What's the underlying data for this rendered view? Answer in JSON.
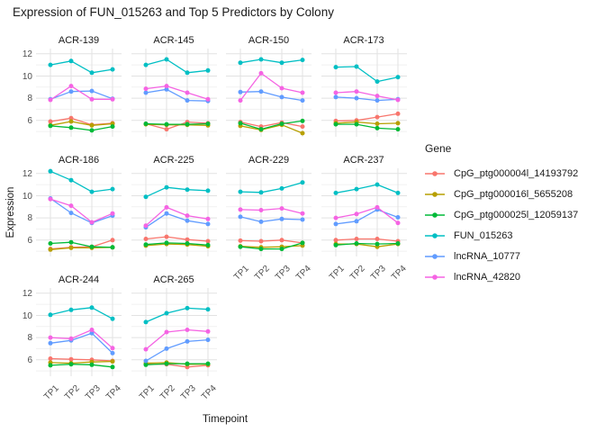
{
  "chart_data": {
    "type": "line",
    "title": "Expression of FUN_015263 and Top 5 Predictors by Colony",
    "xlabel": "Timepoint",
    "ylabel": "Expression",
    "categories": [
      "TP1",
      "TP2",
      "TP3",
      "TP4"
    ],
    "y_ticks": [
      12,
      10,
      8,
      6
    ],
    "ylim": [
      4.5,
      12.5
    ],
    "grid": "on",
    "legend_title": "Gene",
    "legend_position": "right",
    "series_names": [
      "CpG_ptg000004l_14193792",
      "CpG_ptg000016l_5655208",
      "CpG_ptg000025l_12059137",
      "FUN_015263",
      "lncRNA_10777",
      "lncRNA_42820"
    ],
    "series_colors": [
      "#F8766D",
      "#B79F00",
      "#00BA38",
      "#00BFC4",
      "#619CFF",
      "#F564E3"
    ],
    "facets": [
      {
        "name": "ACR-139",
        "series": [
          [
            5.9,
            6.2,
            5.6,
            5.75
          ],
          [
            5.55,
            5.9,
            5.55,
            5.7
          ],
          [
            5.5,
            5.35,
            5.1,
            5.45
          ],
          [
            11.0,
            11.35,
            10.3,
            10.6
          ],
          [
            7.9,
            8.6,
            8.65,
            7.95
          ],
          [
            7.85,
            9.1,
            7.9,
            7.9
          ]
        ]
      },
      {
        "name": "ACR-145",
        "series": [
          [
            5.7,
            5.2,
            5.85,
            5.75
          ],
          [
            5.65,
            5.6,
            5.6,
            5.55
          ],
          [
            5.7,
            5.65,
            5.65,
            5.7
          ],
          [
            11.0,
            11.5,
            10.3,
            10.5
          ],
          [
            8.5,
            8.8,
            7.8,
            7.75
          ],
          [
            8.85,
            9.1,
            8.5,
            7.9
          ]
        ]
      },
      {
        "name": "ACR-150",
        "series": [
          [
            5.85,
            5.45,
            5.8,
            5.45
          ],
          [
            5.5,
            5.15,
            5.6,
            4.85
          ],
          [
            5.75,
            5.2,
            5.7,
            5.95
          ],
          [
            11.2,
            11.5,
            11.2,
            11.45
          ],
          [
            8.55,
            8.6,
            8.1,
            7.8
          ],
          [
            7.8,
            10.25,
            8.9,
            8.5
          ]
        ]
      },
      {
        "name": "ACR-173",
        "series": [
          [
            5.95,
            6.0,
            6.3,
            6.6
          ],
          [
            5.75,
            5.85,
            5.7,
            5.75
          ],
          [
            5.65,
            5.65,
            5.3,
            5.2
          ],
          [
            10.8,
            10.85,
            9.5,
            9.9
          ],
          [
            8.1,
            8.0,
            7.8,
            7.9
          ],
          [
            8.5,
            8.6,
            8.2,
            7.85
          ]
        ]
      },
      {
        "name": "ACR-186",
        "series": [
          [
            5.2,
            5.35,
            5.4,
            6.0
          ],
          [
            5.15,
            5.3,
            5.3,
            5.35
          ],
          [
            5.7,
            5.8,
            5.4,
            5.35
          ],
          [
            12.2,
            11.4,
            10.35,
            10.6
          ],
          [
            9.75,
            8.45,
            7.55,
            8.2
          ],
          [
            9.7,
            9.1,
            7.6,
            8.4
          ]
        ]
      },
      {
        "name": "ACR-225",
        "series": [
          [
            6.1,
            6.3,
            6.05,
            5.9
          ],
          [
            5.5,
            5.65,
            5.6,
            5.45
          ],
          [
            5.6,
            5.75,
            5.7,
            5.55
          ],
          [
            9.9,
            10.75,
            10.55,
            10.45
          ],
          [
            7.15,
            8.4,
            7.75,
            7.45
          ],
          [
            7.3,
            8.95,
            8.2,
            7.9
          ]
        ]
      },
      {
        "name": "ACR-229",
        "series": [
          [
            5.95,
            5.9,
            6.0,
            5.75
          ],
          [
            5.45,
            5.35,
            5.4,
            5.5
          ],
          [
            5.4,
            5.2,
            5.2,
            5.75
          ],
          [
            10.35,
            10.3,
            10.65,
            11.2
          ],
          [
            8.1,
            7.65,
            7.9,
            7.85
          ],
          [
            8.75,
            8.7,
            8.85,
            8.4
          ]
        ]
      },
      {
        "name": "ACR-237",
        "series": [
          [
            6.0,
            6.1,
            6.1,
            5.9
          ],
          [
            5.65,
            5.65,
            5.4,
            5.65
          ],
          [
            5.55,
            5.7,
            5.65,
            5.7
          ],
          [
            10.25,
            10.6,
            11.0,
            10.25
          ],
          [
            7.45,
            7.7,
            8.75,
            8.05
          ],
          [
            8.0,
            8.35,
            8.95,
            7.55
          ]
        ]
      },
      {
        "name": "ACR-244",
        "series": [
          [
            6.1,
            6.05,
            6.0,
            5.9
          ],
          [
            5.75,
            5.7,
            5.8,
            5.85
          ],
          [
            5.5,
            5.6,
            5.55,
            5.35
          ],
          [
            10.05,
            10.5,
            10.7,
            9.7
          ],
          [
            7.5,
            7.75,
            8.4,
            6.6
          ],
          [
            8.0,
            7.9,
            8.7,
            7.05
          ]
        ]
      },
      {
        "name": "ACR-265",
        "series": [
          [
            5.6,
            5.6,
            5.35,
            5.5
          ],
          [
            5.7,
            5.75,
            5.6,
            5.6
          ],
          [
            5.55,
            5.65,
            5.65,
            5.65
          ],
          [
            9.4,
            10.2,
            10.65,
            10.55
          ],
          [
            5.9,
            7.0,
            7.65,
            7.8
          ],
          [
            6.95,
            8.5,
            8.7,
            8.55
          ]
        ]
      }
    ]
  },
  "style": {
    "grid_major_color": "#e2e2e2",
    "grid_minor_color": "#f1f1f1",
    "tick_label_color": "#4d4d4d",
    "text_color": "#1a1a1a"
  }
}
